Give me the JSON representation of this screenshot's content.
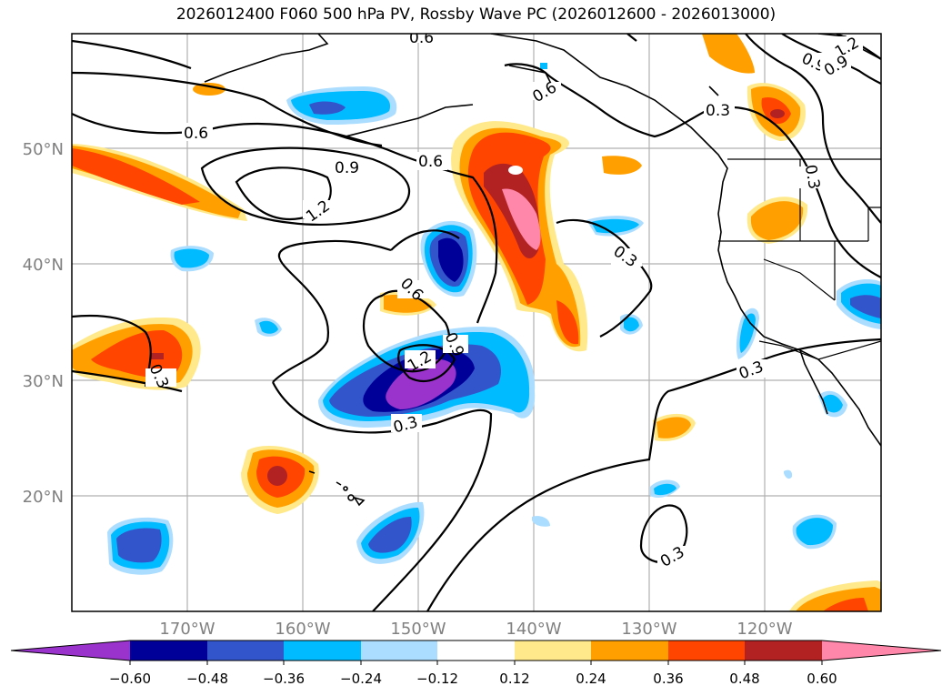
{
  "title": "2026012400 F060 500 hPa PV, Rossby Wave PC (2026012600 - 2026013000)",
  "lat_labels": [
    "50°N",
    "40°N",
    "30°N",
    "20°N"
  ],
  "lon_labels": [
    "170°W",
    "160°W",
    "150°W",
    "140°W",
    "130°W",
    "120°W"
  ],
  "colorbar": {
    "tick_labels": [
      "−0.60",
      "−0.48",
      "−0.36",
      "−0.24",
      "−0.12",
      "0.12",
      "0.24",
      "0.36",
      "0.48",
      "0.60"
    ],
    "colors": [
      "#9933cc",
      "#000099",
      "#3355cc",
      "#00bbff",
      "#aaddff",
      "#ffffff",
      "#ffe98a",
      "#ffa000",
      "#ff4500",
      "#b22222",
      "#ff88aa"
    ]
  },
  "contour_labels": [
    {
      "text": "0.6"
    },
    {
      "text": "0.9"
    },
    {
      "text": "1.2"
    },
    {
      "text": "0.6"
    },
    {
      "text": "0.6"
    },
    {
      "text": "0.3"
    },
    {
      "text": "0.3"
    },
    {
      "text": "0.9"
    },
    {
      "text": "0.6"
    },
    {
      "text": "1.2"
    },
    {
      "text": "0.9"
    },
    {
      "text": "0.3"
    },
    {
      "text": "0.3"
    },
    {
      "text": "0.3"
    },
    {
      "text": "0.3"
    },
    {
      "text": "0.3"
    },
    {
      "text": "1.2"
    },
    {
      "text": "0.9"
    },
    {
      "text": "0.6"
    }
  ]
}
